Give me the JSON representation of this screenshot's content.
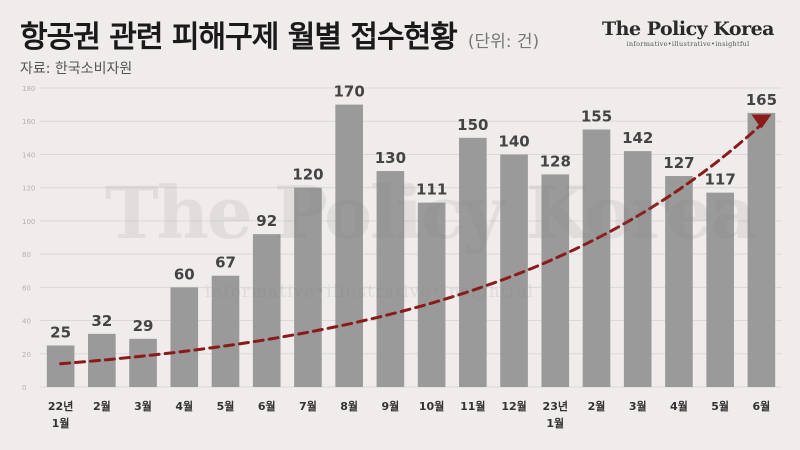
{
  "header": {
    "title": "항공권 관련 피해구제 월별 접수현황",
    "unit": "(단위: 건)",
    "source": "자료: 한국소비자원"
  },
  "brand": {
    "name": "The Policy Korea",
    "tagline": "informative•illustrative•insightful"
  },
  "colors": {
    "background": "#efeceb",
    "bar": "#9a9a9a",
    "trend": "#8b1a1a",
    "label": "#444444"
  },
  "chart_data": {
    "type": "bar",
    "categories": [
      [
        "22년",
        "1월"
      ],
      [
        "2월"
      ],
      [
        "3월"
      ],
      [
        "4월"
      ],
      [
        "5월"
      ],
      [
        "6월"
      ],
      [
        "7월"
      ],
      [
        "8월"
      ],
      [
        "9월"
      ],
      [
        "10월"
      ],
      [
        "11월"
      ],
      [
        "12월"
      ],
      [
        "23년",
        "1월"
      ],
      [
        "2월"
      ],
      [
        "3월"
      ],
      [
        "4월"
      ],
      [
        "5월"
      ],
      [
        "6월"
      ]
    ],
    "values": [
      25,
      32,
      29,
      60,
      67,
      92,
      120,
      170,
      130,
      111,
      150,
      140,
      128,
      155,
      142,
      127,
      117,
      165
    ],
    "ylim": [
      0,
      180
    ],
    "yticks": [
      0,
      20,
      40,
      60,
      80,
      100,
      120,
      140,
      160,
      180
    ],
    "grid": true,
    "trendline": {
      "style": "dashed",
      "arrow": true
    }
  }
}
